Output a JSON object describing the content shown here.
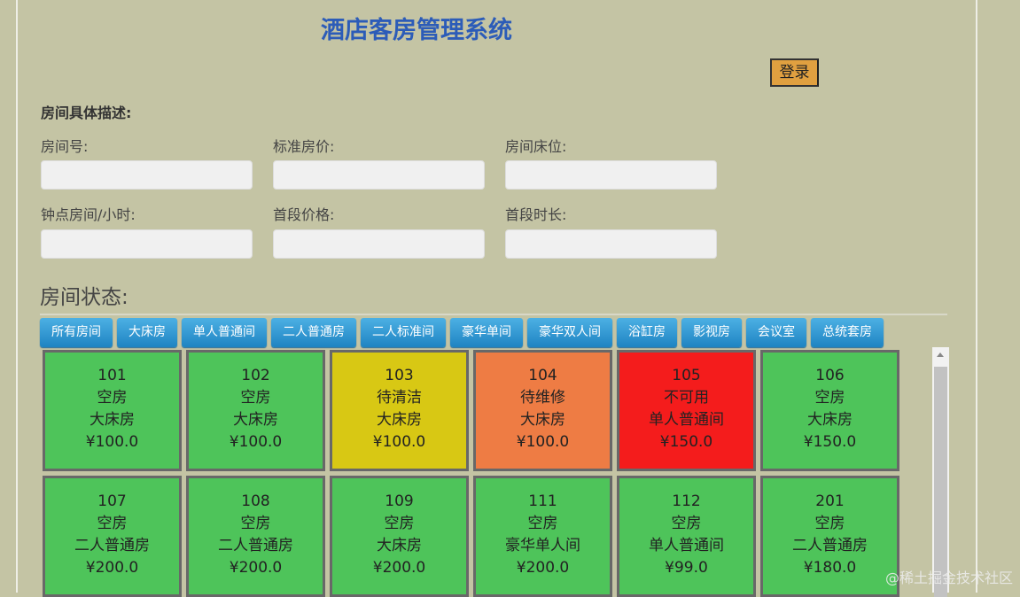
{
  "header": {
    "title": "酒店客房管理系统",
    "login_label": "登录"
  },
  "form": {
    "section_label": "房间具体描述:",
    "fields": [
      {
        "label": "房间号:",
        "value": ""
      },
      {
        "label": "标准房价:",
        "value": ""
      },
      {
        "label": "房间床位:",
        "value": ""
      },
      {
        "label": "钟点房间/小时:",
        "value": ""
      },
      {
        "label": "首段价格:",
        "value": ""
      },
      {
        "label": "首段时长:",
        "value": ""
      }
    ]
  },
  "status_section": {
    "title": "房间状态:",
    "tabs": [
      "所有房间",
      "大床房",
      "单人普通间",
      "二人普通房",
      "二人标准间",
      "豪华单间",
      "豪华双人间",
      "浴缸房",
      "影视房",
      "会议室",
      "总统套房"
    ]
  },
  "status_colors": {
    "空房": "#4ec45a",
    "待清洁": "#d8c814",
    "待维修": "#ee7c44",
    "不可用": "#f41c1c"
  },
  "rooms": [
    {
      "number": "101",
      "status": "空房",
      "type": "大床房",
      "price": "¥100.0"
    },
    {
      "number": "102",
      "status": "空房",
      "type": "大床房",
      "price": "¥100.0"
    },
    {
      "number": "103",
      "status": "待清洁",
      "type": "大床房",
      "price": "¥100.0"
    },
    {
      "number": "104",
      "status": "待维修",
      "type": "大床房",
      "price": "¥100.0"
    },
    {
      "number": "105",
      "status": "不可用",
      "type": "单人普通间",
      "price": "¥150.0"
    },
    {
      "number": "106",
      "status": "空房",
      "type": "大床房",
      "price": "¥150.0"
    },
    {
      "number": "107",
      "status": "空房",
      "type": "二人普通房",
      "price": "¥200.0"
    },
    {
      "number": "108",
      "status": "空房",
      "type": "二人普通房",
      "price": "¥200.0"
    },
    {
      "number": "109",
      "status": "空房",
      "type": "大床房",
      "price": "¥200.0"
    },
    {
      "number": "111",
      "status": "空房",
      "type": "豪华单人间",
      "price": "¥200.0"
    },
    {
      "number": "112",
      "status": "空房",
      "type": "单人普通间",
      "price": "¥99.0"
    },
    {
      "number": "201",
      "status": "空房",
      "type": "二人普通房",
      "price": "¥180.0"
    }
  ],
  "watermark": "@稀土掘金技术社区"
}
